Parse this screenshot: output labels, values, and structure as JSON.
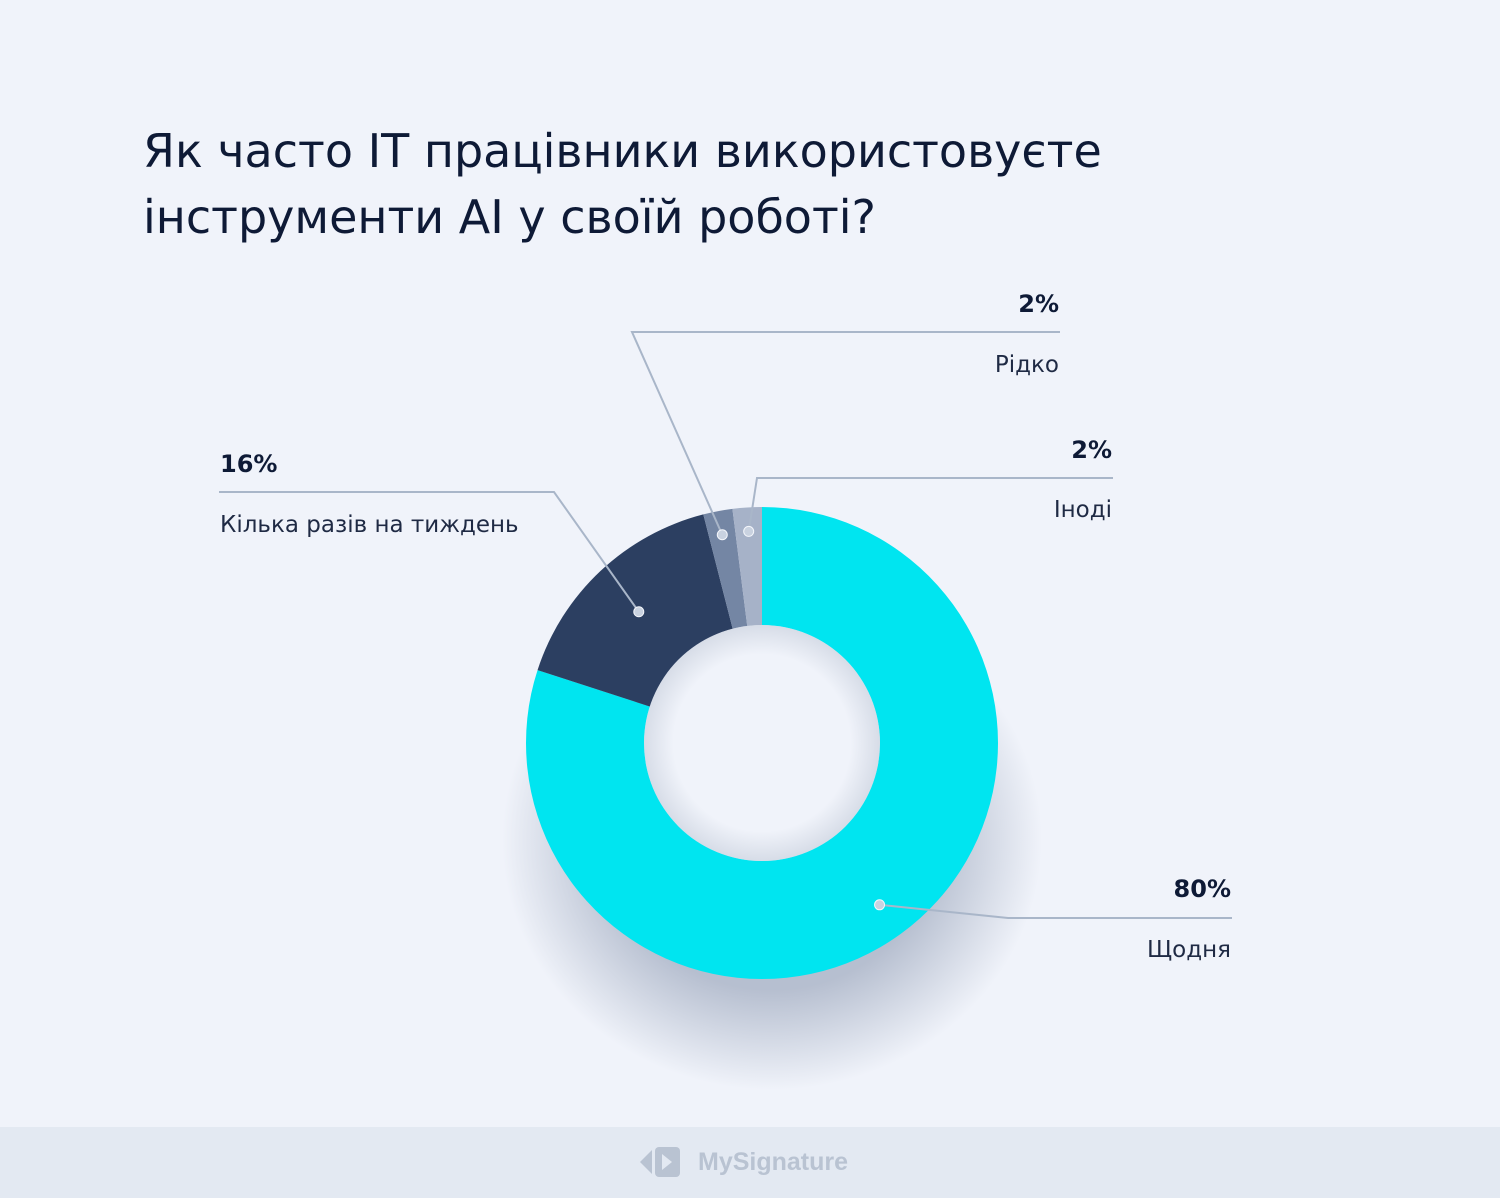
{
  "title_line1": "Як часто IT працівники використовуєте",
  "title_line2": "інструменти AI у своїй роботі?",
  "chart_data": {
    "type": "pie",
    "donut": true,
    "slices": [
      {
        "label": "Щодня",
        "value": 80,
        "value_label": "80%",
        "color": "#00e5f0"
      },
      {
        "label": "Кілька разів на тиждень",
        "value": 16,
        "value_label": "16%",
        "color": "#2c3f61"
      },
      {
        "label": "Рідко",
        "value": 2,
        "value_label": "2%",
        "color": "#7486a4"
      },
      {
        "label": "Іноді",
        "value": 2,
        "value_label": "2%",
        "color": "#a6b2c8"
      }
    ]
  },
  "colors": {
    "background": "#f0f3fa",
    "title": "#0e1a36",
    "leader_line": "#a9b6c9",
    "footer": "#e3e9f2"
  },
  "footer": {
    "brand": "MySignature",
    "logo_icon": "mysignature-logo-icon"
  }
}
